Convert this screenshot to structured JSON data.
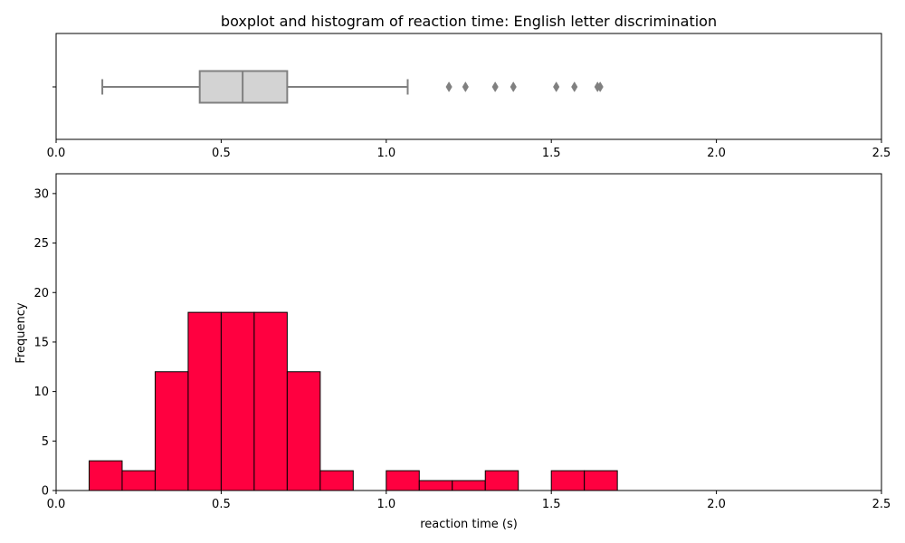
{
  "chart_data": {
    "type": "boxplot+histogram",
    "title": "boxplot and histogram of reaction time: English letter discrimination",
    "xlabel": "reaction time (s)",
    "ylabel": "Frequency",
    "xlim": [
      0,
      2.5
    ],
    "ylim": [
      0,
      32
    ],
    "x_ticks": [
      0.0,
      0.5,
      1.0,
      1.5,
      2.0,
      2.5
    ],
    "x_tick_labels": [
      "0.0",
      "0.5",
      "1.0",
      "1.5",
      "2.0",
      "2.5"
    ],
    "y_ticks": [
      0,
      5,
      10,
      15,
      20,
      25,
      30
    ],
    "y_tick_labels": [
      "0",
      "5",
      "10",
      "15",
      "20",
      "25",
      "30"
    ],
    "boxplot": {
      "whisker_low": 0.14,
      "q1": 0.435,
      "median": 0.565,
      "q3": 0.7,
      "whisker_high": 1.065,
      "outliers": [
        1.19,
        1.24,
        1.33,
        1.385,
        1.515,
        1.57,
        1.64,
        1.648
      ],
      "color": "#d3d3d3",
      "edge_color": "#808080"
    },
    "histogram": {
      "bin_width": 0.1,
      "bins": [
        {
          "x": 0.1,
          "count": 3
        },
        {
          "x": 0.2,
          "count": 2
        },
        {
          "x": 0.3,
          "count": 12
        },
        {
          "x": 0.4,
          "count": 18
        },
        {
          "x": 0.5,
          "count": 18
        },
        {
          "x": 0.6,
          "count": 18
        },
        {
          "x": 0.7,
          "count": 12
        },
        {
          "x": 0.8,
          "count": 2
        },
        {
          "x": 1.0,
          "count": 2
        },
        {
          "x": 1.1,
          "count": 1
        },
        {
          "x": 1.2,
          "count": 1
        },
        {
          "x": 1.3,
          "count": 2
        },
        {
          "x": 1.5,
          "count": 2
        },
        {
          "x": 1.6,
          "count": 2
        }
      ],
      "color": "#ff0040",
      "edge_color": "#000000"
    }
  }
}
